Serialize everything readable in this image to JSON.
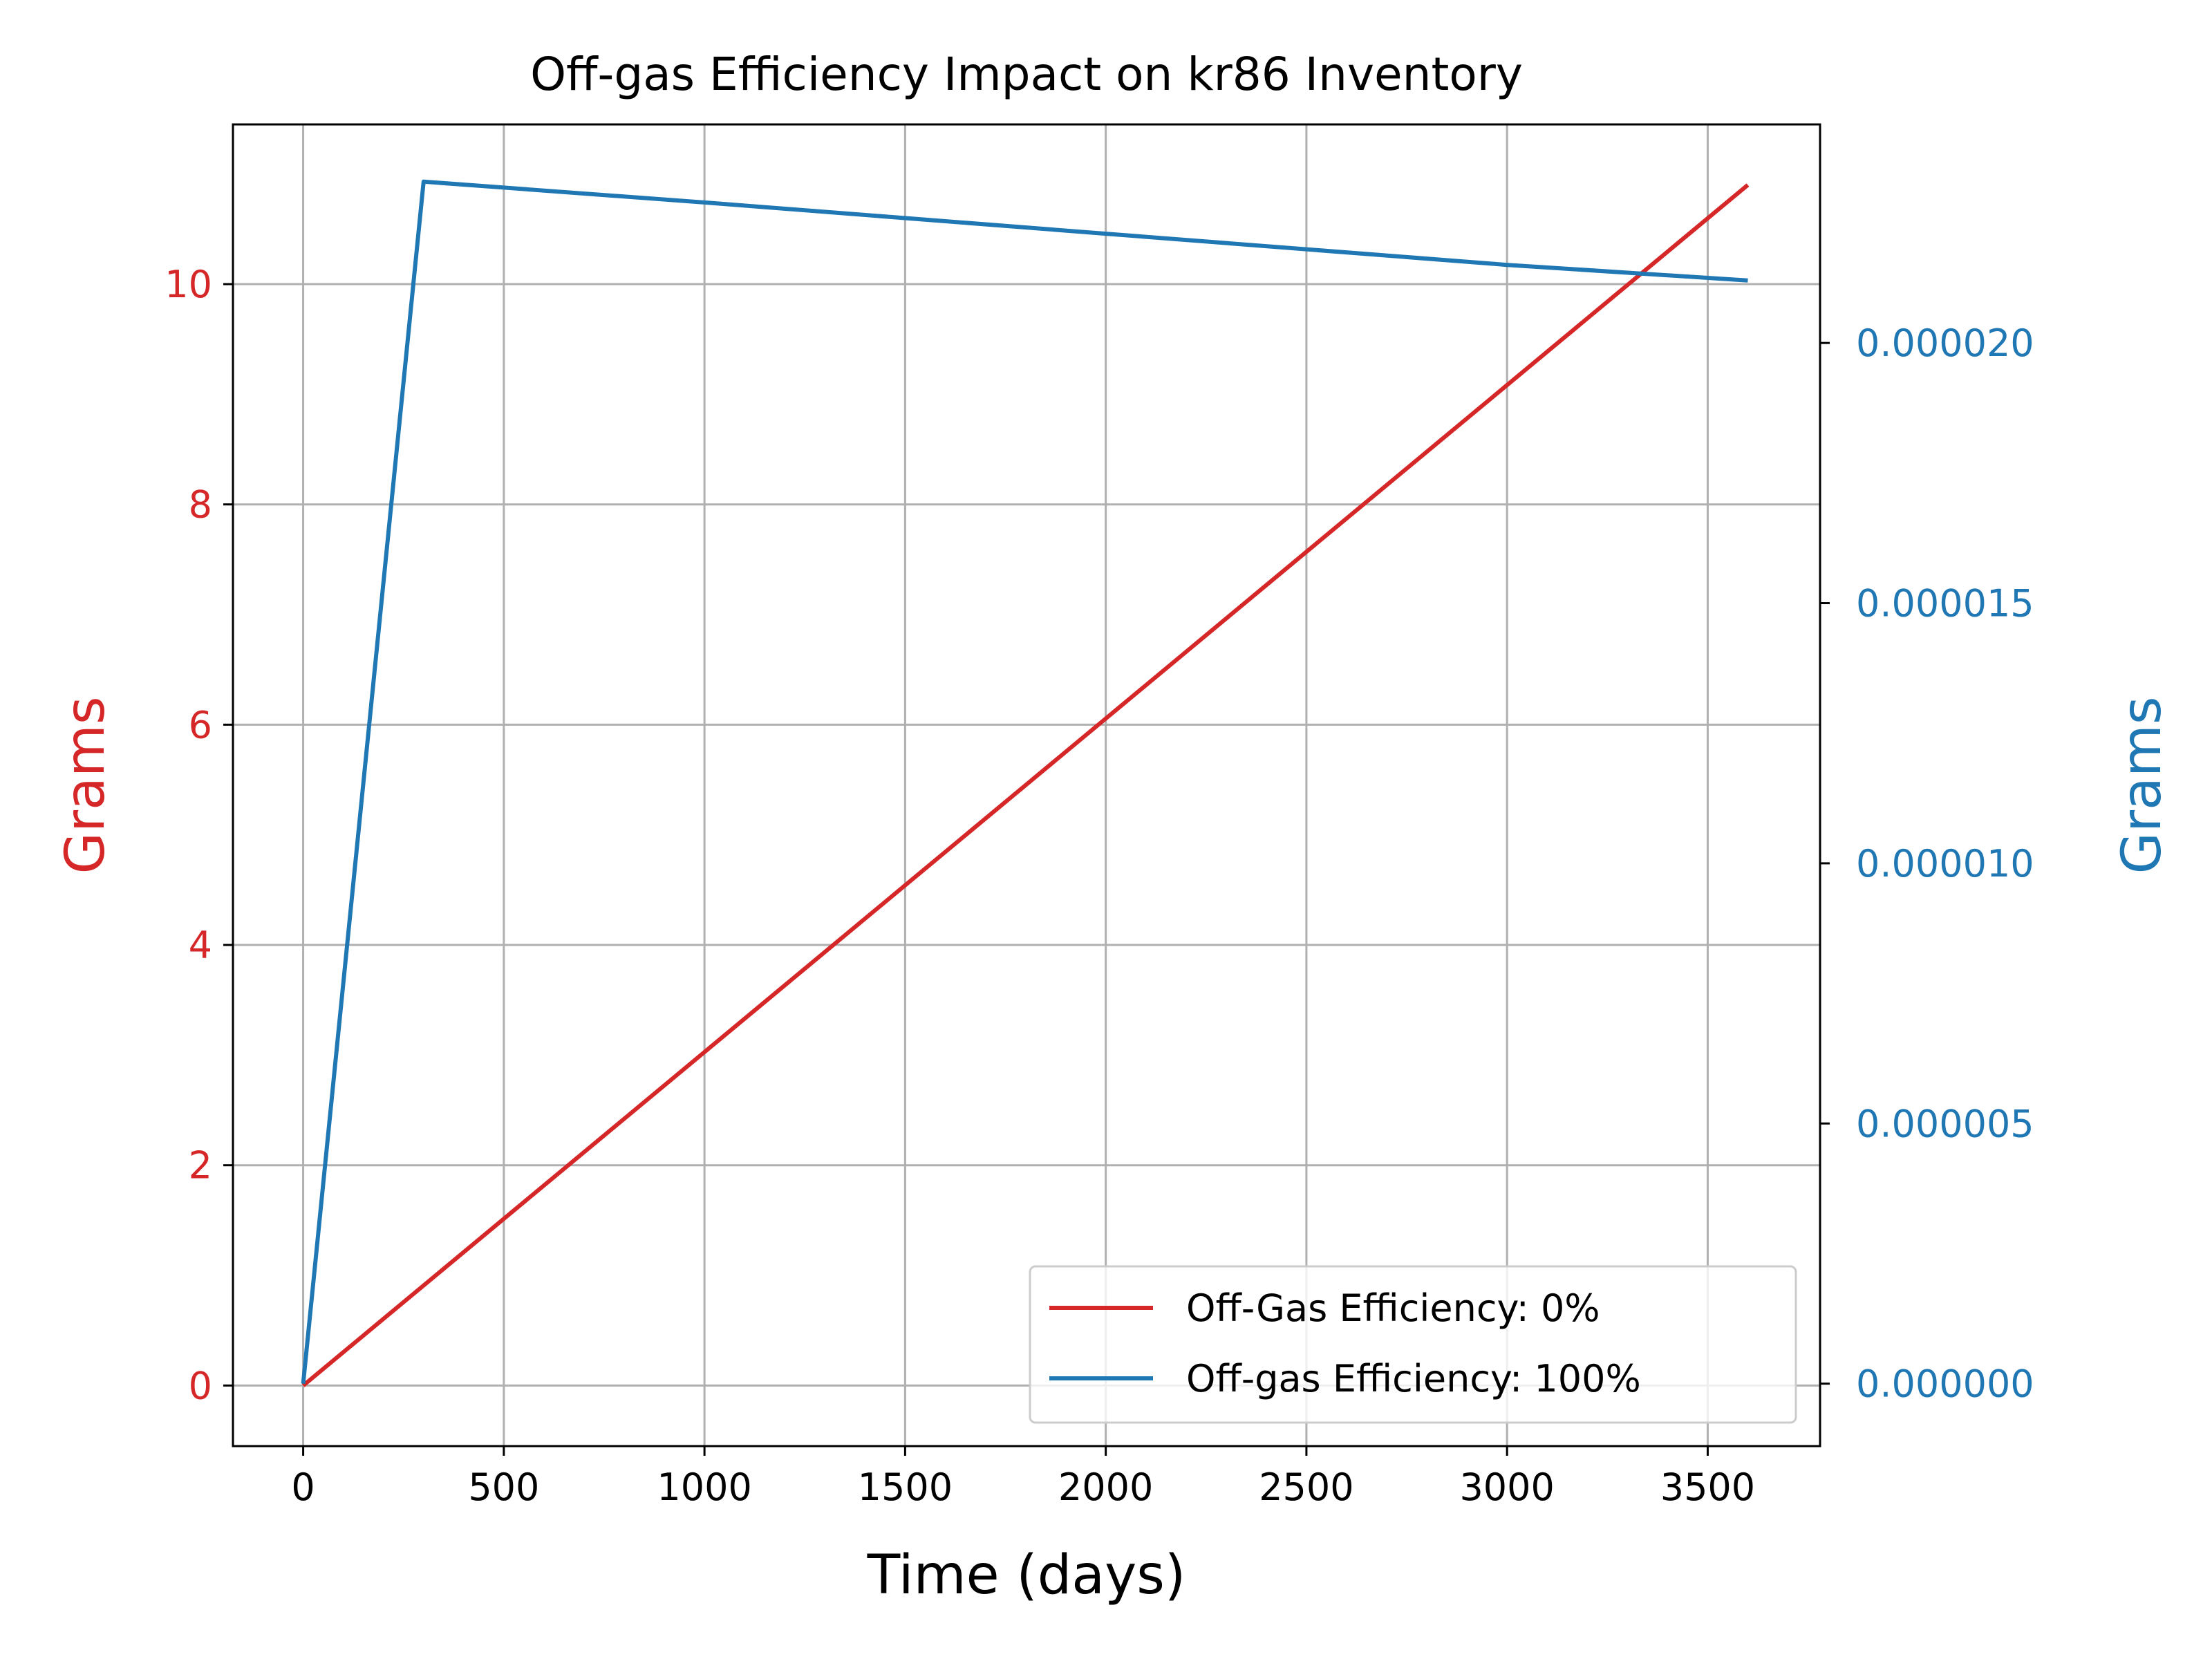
{
  "chart_data": {
    "type": "line",
    "title": "Off-gas Efficiency Impact on kr86 Inventory",
    "xlabel": "Time (days)",
    "ylabel_left": "Grams",
    "ylabel_right": "Grams",
    "xlim": [
      -175,
      3780
    ],
    "ylim_left": [
      -0.55,
      11.45
    ],
    "ylim_right": [
      -1.2e-06,
      2.42e-05
    ],
    "x_ticks": [
      0,
      500,
      1000,
      1500,
      2000,
      2500,
      3000,
      3500
    ],
    "x_tick_labels": [
      "0",
      "500",
      "1000",
      "1500",
      "2000",
      "2500",
      "3000",
      "3500"
    ],
    "y_left_ticks": [
      0,
      2,
      4,
      6,
      8,
      10
    ],
    "y_left_tick_labels": [
      "0",
      "2",
      "4",
      "6",
      "8",
      "10"
    ],
    "y_right_ticks": [
      0,
      5e-06,
      1e-05,
      1.5e-05,
      2e-05
    ],
    "y_right_tick_labels": [
      "0.000000",
      "0.000005",
      "0.000010",
      "0.000015",
      "0.000020"
    ],
    "grid": true,
    "legend_position": "lower-right",
    "colors": {
      "red": "#d62728",
      "blue": "#1f77b4",
      "grid": "#b0b0b0",
      "axis": "#000000"
    },
    "series": [
      {
        "name": "Off-Gas Efficiency: 0%",
        "axis": "left",
        "color": "#d62728",
        "x": [
          0,
          3600
        ],
        "y": [
          0,
          10.9
        ]
      },
      {
        "name": "Off-gas Efficiency: 100%",
        "axis": "right",
        "color": "#1f77b4",
        "x": [
          0,
          300,
          1000,
          2000,
          3000,
          3600
        ],
        "y": [
          0,
          2.31e-05,
          2.27e-05,
          2.21e-05,
          2.15e-05,
          2.12e-05
        ]
      }
    ]
  }
}
